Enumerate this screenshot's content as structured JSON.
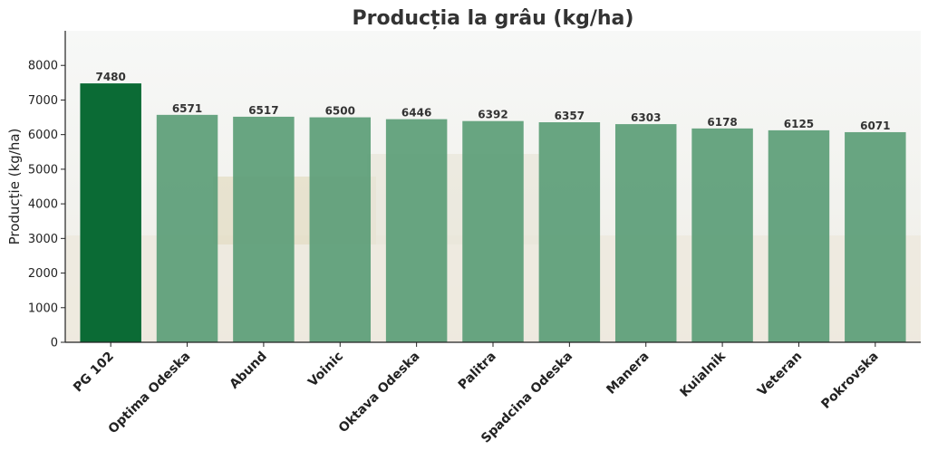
{
  "chart_data": {
    "type": "bar",
    "title": "Producția la grâu (kg/ha)",
    "xlabel": "",
    "ylabel": "Producție (kg/ha)",
    "categories": [
      "PG 102",
      "Optima Odeska",
      "Abund",
      "Voinic",
      "Oktava Odeska",
      "Palitra",
      "Spadcina Odeska",
      "Manera",
      "Kuialnik",
      "Veteran",
      "Pokrovska"
    ],
    "values": [
      7480,
      6571,
      6517,
      6500,
      6446,
      6392,
      6357,
      6303,
      6178,
      6125,
      6071
    ],
    "ylim": [
      0,
      9000
    ],
    "yticks": [
      0,
      1000,
      2000,
      3000,
      4000,
      5000,
      6000,
      7000,
      8000
    ],
    "grid": false,
    "colors": {
      "highlight": "#0b6b35",
      "bar": "#5d9e78",
      "axis": "#222222"
    }
  }
}
